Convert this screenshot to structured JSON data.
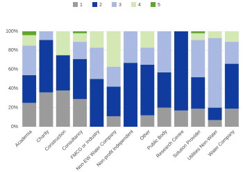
{
  "chart_data": {
    "type": "stacked_bar",
    "categories": [
      "Academia",
      "Charity",
      "Construction",
      "Consultancy",
      "FMCG or Industry",
      "Non-EW Water Company",
      "Non-profit independent",
      "Other",
      "Public Body",
      "Research Centre",
      "Solution Provider",
      "Utilities Non-Water",
      "Water Company"
    ],
    "series": [
      {
        "name": "1",
        "color": "#9b9b9b",
        "values": [
          25,
          36,
          38,
          29,
          0,
          11,
          0,
          12,
          20,
          17,
          19,
          7,
          19
        ]
      },
      {
        "name": "2",
        "color": "#0f3c9e",
        "values": [
          29,
          55,
          37,
          42,
          50,
          31,
          67,
          53,
          37,
          83,
          33,
          13,
          47
        ]
      },
      {
        "name": "3",
        "color": "#a9b9e2",
        "values": [
          31,
          9,
          0,
          18,
          33,
          21,
          33,
          18,
          43,
          0,
          39,
          73,
          23
        ]
      },
      {
        "name": "4",
        "color": "#d3e8b5",
        "values": [
          11,
          0,
          25,
          9,
          17,
          37,
          0,
          17,
          0,
          0,
          7,
          7,
          11
        ]
      },
      {
        "name": "5",
        "color": "#5ea62e",
        "values": [
          4,
          0,
          0,
          2,
          0,
          0,
          0,
          0,
          0,
          0,
          2,
          0,
          0
        ]
      }
    ],
    "ylim": [
      0,
      100
    ],
    "yticks": [
      {
        "value": 0,
        "label": "0%"
      },
      {
        "value": 20,
        "label": "20%"
      },
      {
        "value": 40,
        "label": "40%"
      },
      {
        "value": 60,
        "label": "60%"
      },
      {
        "value": 80,
        "label": "80%"
      },
      {
        "value": 100,
        "label": "100%"
      }
    ],
    "grid": true,
    "legend": "top"
  }
}
